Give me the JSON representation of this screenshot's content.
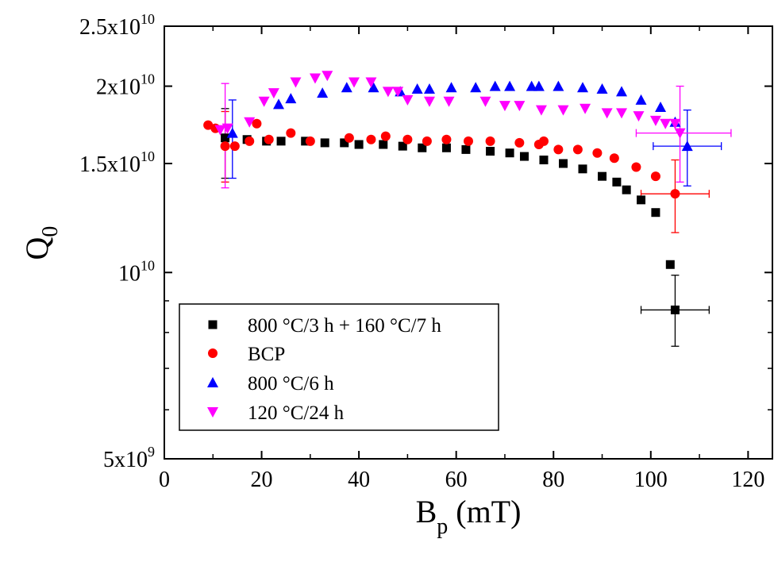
{
  "chart_data": {
    "type": "scatter",
    "title": "",
    "xlabel": {
      "main": "B",
      "sub": "p",
      "rest": " (mT)"
    },
    "ylabel": {
      "main": "Q",
      "sub": "0"
    },
    "xlim": [
      0,
      125
    ],
    "ylim": [
      5000000000,
      25000000000
    ],
    "yscale": "log",
    "x_ticks": [
      {
        "value": 0,
        "label": "0"
      },
      {
        "value": 20,
        "label": "20"
      },
      {
        "value": 40,
        "label": "40"
      },
      {
        "value": 60,
        "label": "60"
      },
      {
        "value": 80,
        "label": "80"
      },
      {
        "value": 100,
        "label": "100"
      },
      {
        "value": 120,
        "label": "120"
      }
    ],
    "y_ticks": [
      {
        "value": 5000000000,
        "mant": "5x10",
        "exp": "9"
      },
      {
        "value": 10000000000,
        "mant": "10",
        "exp": "10"
      },
      {
        "value": 15000000000,
        "mant": "1.5x10",
        "exp": "10"
      },
      {
        "value": 20000000000,
        "mant": "2x10",
        "exp": "10"
      },
      {
        "value": 25000000000,
        "mant": "2.5x10",
        "exp": "10"
      }
    ],
    "legend_position": "bottom-left",
    "series": [
      {
        "name": "800 °C/3 h + 160 °C/7 h",
        "marker": "square",
        "color": "#000000",
        "x": [
          12.5,
          17,
          21,
          24,
          29,
          33,
          37,
          40,
          45,
          49,
          53,
          58,
          62,
          67,
          71,
          74,
          78,
          82,
          86,
          90,
          93,
          95,
          98,
          101,
          104,
          105
        ],
        "y": [
          16.5,
          16.4,
          16.3,
          16.3,
          16.3,
          16.2,
          16.2,
          16.1,
          16.1,
          16.0,
          15.9,
          15.9,
          15.8,
          15.7,
          15.6,
          15.4,
          15.2,
          15.0,
          14.7,
          14.3,
          14.0,
          13.6,
          13.1,
          12.5,
          10.3,
          8.7
        ],
        "error_bars": [
          {
            "x": 12.5,
            "y": 16.5,
            "ylo": 14.2,
            "yhi": 18.4
          },
          {
            "x": 105,
            "y": 8.7,
            "xlo": 98,
            "xhi": 112,
            "ylo": 7.6,
            "yhi": 9.9
          }
        ]
      },
      {
        "name": "BCP",
        "marker": "circle",
        "color": "#ff0000",
        "x": [
          9,
          10.5,
          12.5,
          14.5,
          17.5,
          19,
          21.5,
          26,
          30,
          38,
          42.5,
          45.5,
          50,
          54,
          58,
          62.5,
          67,
          73,
          77,
          78,
          81,
          85,
          89,
          92.5,
          97,
          101,
          105
        ],
        "y": [
          17.3,
          17.1,
          16.0,
          16.0,
          16.3,
          17.4,
          16.4,
          16.8,
          16.3,
          16.5,
          16.4,
          16.6,
          16.4,
          16.3,
          16.4,
          16.3,
          16.3,
          16.2,
          16.1,
          16.3,
          15.8,
          15.8,
          15.6,
          15.3,
          14.8,
          14.3,
          13.4
        ],
        "error_bars": [
          {
            "x": 12.5,
            "y": 16.0,
            "ylo": 14.0,
            "yhi": 18.2
          },
          {
            "x": 105,
            "y": 13.4,
            "xlo": 98,
            "xhi": 112,
            "ylo": 11.6,
            "yhi": 15.2
          }
        ]
      },
      {
        "name": "800 °C/6 h",
        "marker": "triangle-up",
        "color": "#0000ff",
        "x": [
          14,
          23.5,
          26,
          32.5,
          37.5,
          43,
          48.5,
          52,
          54.5,
          59,
          64,
          68,
          71,
          75.5,
          77,
          81,
          86,
          90,
          94,
          98,
          102,
          105,
          107.5
        ],
        "y": [
          16.8,
          18.7,
          19.1,
          19.5,
          19.9,
          19.9,
          19.6,
          19.8,
          19.8,
          19.9,
          19.9,
          20.0,
          20.0,
          20.0,
          20.0,
          20.0,
          19.9,
          19.8,
          19.6,
          19.0,
          18.5,
          17.5,
          16.0
        ],
        "error_bars": [
          {
            "x": 14,
            "y": 16.8,
            "ylo": 14.2,
            "yhi": 19.0
          },
          {
            "x": 107.5,
            "y": 16.0,
            "xlo": 100.5,
            "xhi": 114.5,
            "ylo": 13.8,
            "yhi": 18.3
          }
        ]
      },
      {
        "name": "120 °C/24 h",
        "marker": "triangle-down",
        "color": "#ff00ff",
        "x": [
          11.5,
          13,
          17.5,
          20.5,
          22.5,
          27,
          31,
          33.5,
          39,
          42.5,
          46,
          48,
          50,
          54.5,
          58.5,
          66,
          70,
          73,
          77.5,
          82,
          86.5,
          91,
          94,
          97.5,
          101,
          103,
          105,
          106
        ],
        "y": [
          17.0,
          17.1,
          17.5,
          18.9,
          19.5,
          20.3,
          20.6,
          20.8,
          20.3,
          20.3,
          19.6,
          19.6,
          19.0,
          18.9,
          18.9,
          18.9,
          18.6,
          18.6,
          18.3,
          18.3,
          18.4,
          18.1,
          18.1,
          17.9,
          17.6,
          17.4,
          17.4,
          16.8
        ],
        "error_bars": [
          {
            "x": 12.5,
            "y": 17.0,
            "ylo": 13.7,
            "yhi": 20.2
          },
          {
            "x": 106,
            "y": 16.8,
            "xlo": 97,
            "xhi": 116.5,
            "ylo": 14.0,
            "yhi": 20.0
          }
        ]
      }
    ]
  }
}
